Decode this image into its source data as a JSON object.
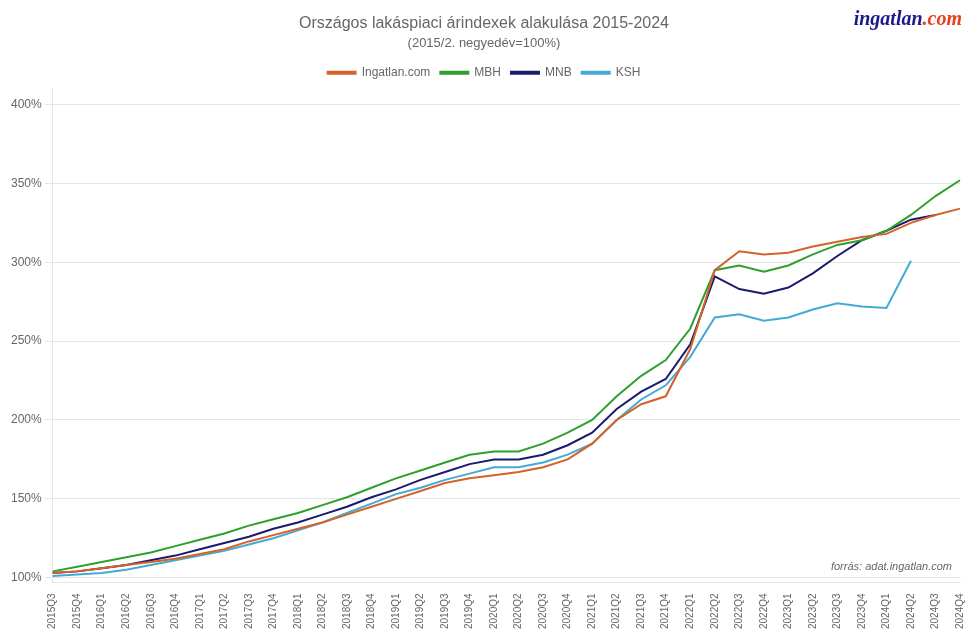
{
  "chart_data": {
    "type": "line",
    "title": "Országos lakáspiaci árindexek alakulása 2015-2024",
    "subtitle": "(2015/2. negyedév=100%)",
    "annotations": [
      {
        "text": "ingatlan",
        "color": "#1a1a8c"
      },
      {
        "text": ".com",
        "color": "#e8401c"
      },
      {
        "text": "forrás: adat.ingatlan.com"
      }
    ],
    "categories": [
      "2015Q3",
      "2015Q4",
      "2016Q1",
      "2016Q2",
      "2016Q3",
      "2016Q4",
      "2017Q1",
      "2017Q2",
      "2017Q3",
      "2017Q4",
      "2018Q1",
      "2018Q2",
      "2018Q3",
      "2018Q4",
      "2019Q1",
      "2019Q2",
      "2019Q3",
      "2019Q4",
      "2020Q1",
      "2020Q2",
      "2020Q3",
      "2020Q4",
      "2021Q1",
      "2021Q2",
      "2021Q3",
      "2021Q4",
      "2022Q1",
      "2022Q2",
      "2022Q3",
      "2022Q4",
      "2023Q1",
      "2023Q2",
      "2023Q3",
      "2023Q4",
      "2024Q1",
      "2024Q2",
      "2024Q3",
      "2024Q4"
    ],
    "series": [
      {
        "name": "Ingatlan.com",
        "color": "#d4622a",
        "values": [
          103,
          104,
          106,
          108,
          110,
          112,
          115,
          118,
          123,
          127,
          131,
          135,
          140,
          145,
          150,
          155,
          160,
          163,
          165,
          167,
          170,
          175,
          185,
          200,
          210,
          215,
          245,
          295,
          307,
          305,
          306,
          310,
          313,
          316,
          318,
          325,
          330,
          334
        ]
      },
      {
        "name": "MBH",
        "color": "#2da02d",
        "values": [
          104,
          107,
          110,
          113,
          116,
          120,
          124,
          128,
          133,
          137,
          141,
          146,
          151,
          157,
          163,
          168,
          173,
          178,
          180,
          180,
          185,
          192,
          200,
          215,
          228,
          238,
          258,
          295,
          298,
          294,
          298,
          305,
          311,
          314,
          320,
          330,
          342,
          352
        ]
      },
      {
        "name": "MNB",
        "color": "#1a1a6e",
        "values": [
          103,
          104,
          106,
          108,
          111,
          114,
          118,
          122,
          126,
          131,
          135,
          140,
          145,
          151,
          156,
          162,
          167,
          172,
          175,
          175,
          178,
          184,
          192,
          207,
          218,
          226,
          248,
          291,
          283,
          280,
          284,
          293,
          304,
          314,
          320,
          327,
          330,
          null
        ]
      },
      {
        "name": "KSH",
        "color": "#44aad4",
        "values": [
          101,
          102,
          103,
          105,
          108,
          111,
          114,
          117,
          121,
          125,
          130,
          135,
          141,
          147,
          153,
          157,
          162,
          166,
          170,
          170,
          173,
          178,
          185,
          200,
          213,
          222,
          240,
          265,
          267,
          263,
          265,
          270,
          274,
          272,
          271,
          301,
          null,
          null
        ]
      }
    ],
    "ylim": [
      97,
      410
    ],
    "yticks": [
      {
        "value": 100,
        "label": "100%"
      },
      {
        "value": 150,
        "label": "150%"
      },
      {
        "value": 200,
        "label": "200%"
      },
      {
        "value": 250,
        "label": "250%"
      },
      {
        "value": 300,
        "label": "300%"
      },
      {
        "value": 350,
        "label": "350%"
      },
      {
        "value": 400,
        "label": "400%"
      }
    ],
    "grid": true,
    "legend": "top"
  }
}
